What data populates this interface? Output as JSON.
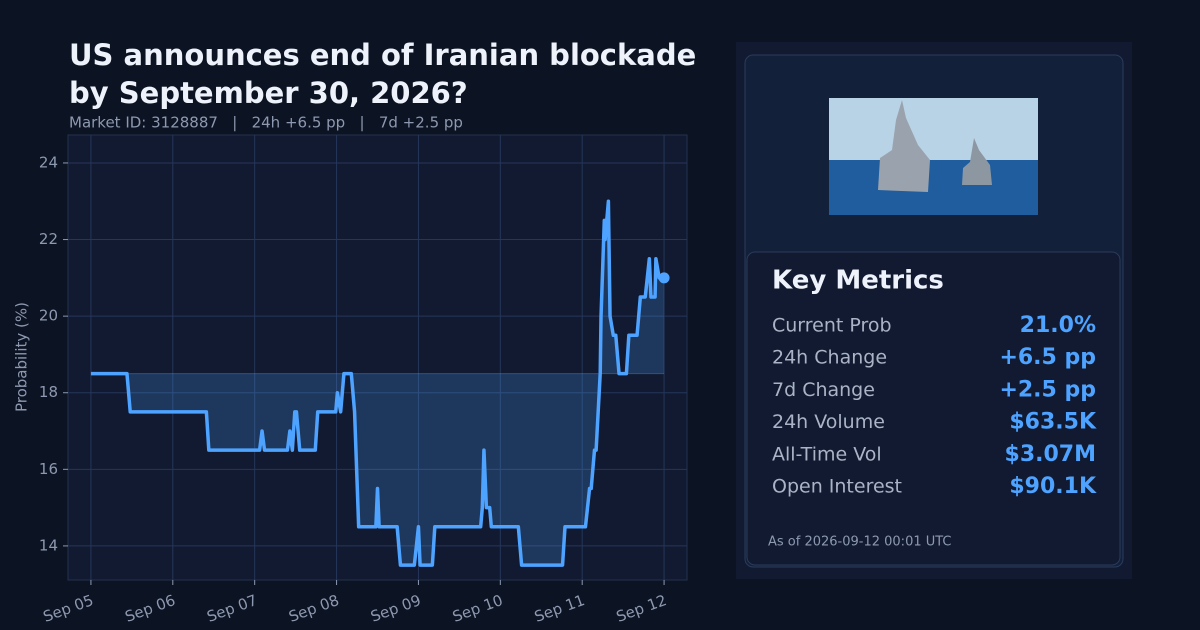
{
  "chart_data": {
    "type": "line",
    "title": [
      "US announces end of Iranian blockade",
      "by September 30, 2026?"
    ],
    "subtitle": "Market ID: 3128887   |   24h +6.5 pp   |   7d +2.5 pp",
    "y_label": "Probability (%)",
    "x": [
      0,
      0.44,
      0.48,
      1.41,
      1.44,
      2.06,
      2.09,
      2.12,
      2.4,
      2.43,
      2.46,
      2.49,
      2.51,
      2.55,
      2.74,
      2.77,
      2.99,
      3.01,
      3.05,
      3.09,
      3.18,
      3.22,
      3.27,
      3.48,
      3.5,
      3.52,
      3.74,
      3.78,
      3.95,
      4.0,
      4.02,
      4.17,
      4.2,
      4.76,
      4.78,
      4.8,
      4.83,
      4.87,
      4.89,
      5.22,
      5.26,
      5.76,
      5.79,
      6.04,
      6.09,
      6.11,
      6.15,
      6.17,
      6.22,
      6.23,
      6.27,
      6.28,
      6.32,
      6.34,
      6.38,
      6.41,
      6.45,
      6.54,
      6.57,
      6.67,
      6.71,
      6.77,
      6.82,
      6.84,
      6.89,
      6.9,
      6.94,
      7.0
    ],
    "series": [
      {
        "color": "#4da3ff",
        "values": [
          18.5,
          18.5,
          17.5,
          17.5,
          16.5,
          16.5,
          17,
          16.5,
          16.5,
          17,
          16.5,
          17.5,
          17.5,
          16.5,
          16.5,
          17.5,
          17.5,
          18,
          17.5,
          18.5,
          18.5,
          17.5,
          14.5,
          14.5,
          15.5,
          14.5,
          14.5,
          13.5,
          13.5,
          14.5,
          13.5,
          13.5,
          14.5,
          14.5,
          15,
          16.5,
          15,
          15,
          14.5,
          14.5,
          13.5,
          13.5,
          14.5,
          14.5,
          15.5,
          15.5,
          16.5,
          16.5,
          18.5,
          20,
          22.5,
          22,
          23,
          20,
          19.5,
          19.5,
          18.5,
          18.5,
          19.5,
          19.5,
          20.5,
          20.5,
          21.5,
          20.5,
          20.5,
          21.5,
          21,
          21
        ]
      }
    ],
    "xlim": [
      -0.28,
      7.28
    ],
    "xticks": [
      {
        "value": 0,
        "label": "Sep 05"
      },
      {
        "value": 1,
        "label": "Sep 06"
      },
      {
        "value": 2,
        "label": "Sep 07"
      },
      {
        "value": 3,
        "label": "Sep 08"
      },
      {
        "value": 4,
        "label": "Sep 09"
      },
      {
        "value": 5,
        "label": "Sep 10"
      },
      {
        "value": 6,
        "label": "Sep 11"
      },
      {
        "value": 7,
        "label": "Sep 12"
      }
    ],
    "ylim": [
      13.11,
      24.73
    ],
    "yticks": [
      14,
      16,
      18,
      20,
      22,
      24
    ],
    "grid": true
  },
  "panel": {
    "title": "Key Metrics",
    "rows": [
      [
        "Current Prob",
        "21.0%"
      ],
      [
        "24h Change",
        "+6.5 pp"
      ],
      [
        "7d Change",
        "+2.5 pp"
      ],
      [
        "24h Volume",
        "$63.5K"
      ],
      [
        "All-Time Vol",
        "$3.07M"
      ],
      [
        "Open Interest",
        "$90.1K"
      ]
    ],
    "footnote": "As of 2026-09-12 00:01 UTC"
  }
}
